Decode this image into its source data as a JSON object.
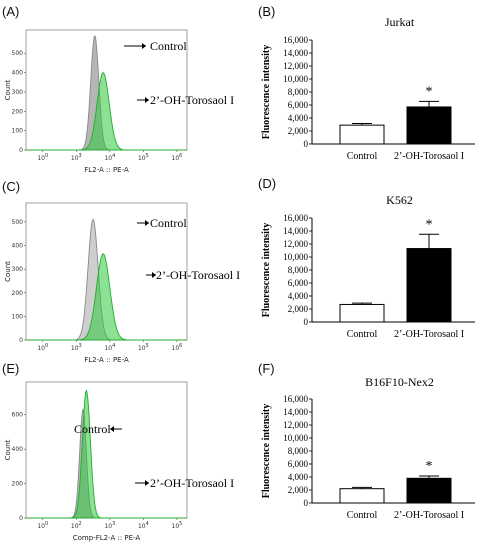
{
  "chart_data": [
    {
      "panel": "(A)",
      "type": "area",
      "xlabel": "FL2-A :: PE-A",
      "ylabel": "Count",
      "x_ticks": [
        "0",
        "3",
        "4",
        "5",
        "6"
      ],
      "y_ticks": [
        0,
        100,
        200,
        300,
        400,
        500
      ],
      "ylim": [
        0,
        620
      ],
      "series": [
        {
          "name": "Control",
          "label_text": "Control",
          "color": "#9e9e9e",
          "peak_log10": 3.55,
          "peak_count": 590,
          "width_log10": 0.12
        },
        {
          "name": "2'-OH-Torosaol I",
          "label_text": "2’-OH-Torosaol I",
          "color": "#2ec83c",
          "peak_log10": 3.8,
          "peak_count": 400,
          "width_log10": 0.18
        }
      ]
    },
    {
      "panel": "(C)",
      "type": "area",
      "xlabel": "FL2-A :: PE-A",
      "ylabel": "Count",
      "x_ticks": [
        "0",
        "3",
        "4",
        "5",
        "6"
      ],
      "y_ticks": [
        0,
        100,
        200,
        300,
        400,
        500
      ],
      "ylim": [
        0,
        580
      ],
      "series": [
        {
          "name": "Control",
          "label_text": "Control",
          "color": "#bdbdbd",
          "peak_log10": 3.5,
          "peak_count": 510,
          "width_log10": 0.15
        },
        {
          "name": "2'-OH-Torosaol I",
          "label_text": "2’-OH-Torosaol I",
          "color": "#2ec83c",
          "peak_log10": 3.8,
          "peak_count": 365,
          "width_log10": 0.2
        }
      ]
    },
    {
      "panel": "(E)",
      "type": "area",
      "xlabel": "Comp-FL2-A :: PE-A",
      "ylabel": "Count",
      "x_ticks": [
        "0",
        "2",
        "3",
        "4",
        "5"
      ],
      "y_ticks": [
        0,
        200,
        400,
        600
      ],
      "ylim": [
        0,
        790
      ],
      "series": [
        {
          "name": "Control",
          "label_text": "Control",
          "color": "#9e9e9e",
          "peak_log10": 3.2,
          "peak_count": 630,
          "width_log10": 0.1
        },
        {
          "name": "2'-OH-Torosaol I",
          "label_text": "2’-OH-Torosaol I",
          "color": "#2ec83c",
          "peak_log10": 3.3,
          "peak_count": 740,
          "width_log10": 0.12
        }
      ]
    },
    {
      "panel": "(B)",
      "type": "bar",
      "title": "Jurkat",
      "ylabel": "Fluorescence intensity",
      "categories": [
        "Control",
        "2’-OH-Torosaol I"
      ],
      "values": [
        2900,
        5700
      ],
      "errors": [
        250,
        850
      ],
      "significance": [
        "",
        "*"
      ],
      "fill_colors": [
        "#ffffff",
        "#000000"
      ],
      "ylim": [
        0,
        16000
      ],
      "y_ticks": [
        "0",
        "2,000",
        "4,000",
        "6,000",
        "8,000",
        "10,000",
        "12,000",
        "14,000",
        "16,000"
      ]
    },
    {
      "panel": "(D)",
      "type": "bar",
      "title": "K562",
      "ylabel": "Fluorescence intensity",
      "categories": [
        "Control",
        "2’-OH-Torosaol I"
      ],
      "values": [
        2700,
        11300
      ],
      "errors": [
        200,
        2200
      ],
      "significance": [
        "",
        "*"
      ],
      "fill_colors": [
        "#ffffff",
        "#000000"
      ],
      "ylim": [
        0,
        16000
      ],
      "y_ticks": [
        "0",
        "2,000",
        "4,000",
        "6,000",
        "8,000",
        "10,000",
        "12,000",
        "14,000",
        "16,000"
      ]
    },
    {
      "panel": "(F)",
      "type": "bar",
      "title": "B16F10-Nex2",
      "ylabel": "Fluorescence intensity",
      "categories": [
        "Control",
        "2’-OH-Torosaol I"
      ],
      "values": [
        2200,
        3800
      ],
      "errors": [
        200,
        350
      ],
      "significance": [
        "",
        "*"
      ],
      "fill_colors": [
        "#ffffff",
        "#000000"
      ],
      "ylim": [
        0,
        16000
      ],
      "y_ticks": [
        "0",
        "2,000",
        "4,000",
        "6,000",
        "8,000",
        "10,000",
        "12,000",
        "14,000",
        "16,000"
      ]
    }
  ]
}
